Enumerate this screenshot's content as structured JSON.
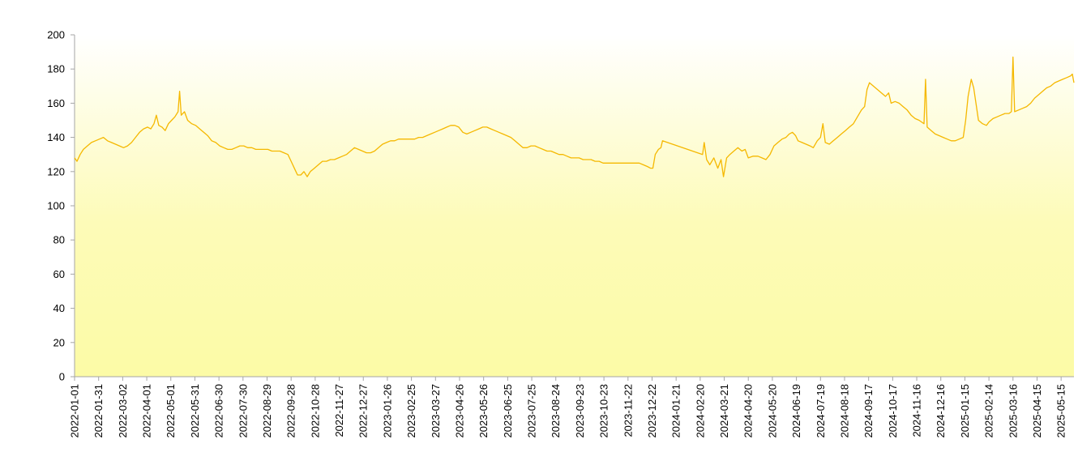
{
  "chart_data": {
    "type": "line",
    "title": "",
    "xlabel": "",
    "ylabel": "",
    "ylim": [
      0,
      200
    ],
    "y_ticks": [
      0,
      20,
      40,
      60,
      80,
      100,
      120,
      140,
      160,
      180,
      200
    ],
    "x_range": [
      "2022-01-01",
      "2025-05-31"
    ],
    "x_tick_labels": [
      "2022-01-01",
      "2022-01-31",
      "2022-03-02",
      "2022-04-01",
      "2022-05-01",
      "2022-05-31",
      "2022-06-30",
      "2022-07-30",
      "2022-08-29",
      "2022-09-28",
      "2022-10-28",
      "2022-11-27",
      "2022-12-27",
      "2023-01-26",
      "2023-02-25",
      "2023-03-27",
      "2023-04-26",
      "2023-05-26",
      "2023-06-25",
      "2023-07-25",
      "2023-08-24",
      "2023-09-23",
      "2023-10-23",
      "2023-11-22",
      "2023-12-22",
      "2024-01-21",
      "2024-02-20",
      "2024-03-21",
      "2024-04-20",
      "2024-05-20",
      "2024-06-19",
      "2024-07-19",
      "2024-08-18",
      "2024-09-17",
      "2024-10-17",
      "2024-11-16",
      "2024-12-16",
      "2025-01-15",
      "2025-02-14",
      "2025-03-16",
      "2025-04-15",
      "2025-05-15"
    ],
    "grid": false,
    "legend": "none",
    "background": {
      "top": "#ffffff",
      "mid": "#fdfbb8",
      "bottom": "#fcfba6"
    },
    "series": [
      {
        "color": "#f5b800",
        "points": [
          [
            "2022-01-01",
            128
          ],
          [
            "2022-01-04",
            126
          ],
          [
            "2022-01-08",
            130
          ],
          [
            "2022-01-12",
            133
          ],
          [
            "2022-01-17",
            135
          ],
          [
            "2022-01-22",
            137
          ],
          [
            "2022-01-27",
            138
          ],
          [
            "2022-02-01",
            139
          ],
          [
            "2022-02-06",
            140
          ],
          [
            "2022-02-11",
            138
          ],
          [
            "2022-02-16",
            137
          ],
          [
            "2022-02-21",
            136
          ],
          [
            "2022-02-26",
            135
          ],
          [
            "2022-03-03",
            134
          ],
          [
            "2022-03-08",
            135
          ],
          [
            "2022-03-13",
            137
          ],
          [
            "2022-03-18",
            140
          ],
          [
            "2022-03-23",
            143
          ],
          [
            "2022-03-28",
            145
          ],
          [
            "2022-04-02",
            146
          ],
          [
            "2022-04-06",
            145
          ],
          [
            "2022-04-10",
            148
          ],
          [
            "2022-04-13",
            153
          ],
          [
            "2022-04-16",
            147
          ],
          [
            "2022-04-20",
            146
          ],
          [
            "2022-04-24",
            144
          ],
          [
            "2022-04-28",
            148
          ],
          [
            "2022-05-02",
            150
          ],
          [
            "2022-05-06",
            152
          ],
          [
            "2022-05-10",
            155
          ],
          [
            "2022-05-12",
            167
          ],
          [
            "2022-05-14",
            153
          ],
          [
            "2022-05-18",
            155
          ],
          [
            "2022-05-22",
            150
          ],
          [
            "2022-05-27",
            148
          ],
          [
            "2022-06-01",
            147
          ],
          [
            "2022-06-06",
            145
          ],
          [
            "2022-06-11",
            143
          ],
          [
            "2022-06-16",
            141
          ],
          [
            "2022-06-21",
            138
          ],
          [
            "2022-06-26",
            137
          ],
          [
            "2022-07-01",
            135
          ],
          [
            "2022-07-06",
            134
          ],
          [
            "2022-07-11",
            133
          ],
          [
            "2022-07-16",
            133
          ],
          [
            "2022-07-21",
            134
          ],
          [
            "2022-07-26",
            135
          ],
          [
            "2022-07-31",
            135
          ],
          [
            "2022-08-05",
            134
          ],
          [
            "2022-08-10",
            134
          ],
          [
            "2022-08-15",
            133
          ],
          [
            "2022-08-20",
            133
          ],
          [
            "2022-08-25",
            133
          ],
          [
            "2022-08-30",
            133
          ],
          [
            "2022-09-04",
            132
          ],
          [
            "2022-09-09",
            132
          ],
          [
            "2022-09-14",
            132
          ],
          [
            "2022-09-19",
            131
          ],
          [
            "2022-09-24",
            130
          ],
          [
            "2022-09-28",
            126
          ],
          [
            "2022-10-03",
            121
          ],
          [
            "2022-10-06",
            118
          ],
          [
            "2022-10-10",
            118
          ],
          [
            "2022-10-14",
            120
          ],
          [
            "2022-10-18",
            117
          ],
          [
            "2022-10-22",
            120
          ],
          [
            "2022-10-27",
            122
          ],
          [
            "2022-11-01",
            124
          ],
          [
            "2022-11-06",
            126
          ],
          [
            "2022-11-11",
            126
          ],
          [
            "2022-11-16",
            127
          ],
          [
            "2022-11-21",
            127
          ],
          [
            "2022-11-26",
            128
          ],
          [
            "2022-12-01",
            129
          ],
          [
            "2022-12-06",
            130
          ],
          [
            "2022-12-11",
            132
          ],
          [
            "2022-12-16",
            134
          ],
          [
            "2022-12-21",
            133
          ],
          [
            "2022-12-26",
            132
          ],
          [
            "2022-12-31",
            131
          ],
          [
            "2023-01-05",
            131
          ],
          [
            "2023-01-10",
            132
          ],
          [
            "2023-01-15",
            134
          ],
          [
            "2023-01-20",
            136
          ],
          [
            "2023-01-25",
            137
          ],
          [
            "2023-01-30",
            138
          ],
          [
            "2023-02-04",
            138
          ],
          [
            "2023-02-09",
            139
          ],
          [
            "2023-02-14",
            139
          ],
          [
            "2023-02-19",
            139
          ],
          [
            "2023-02-24",
            139
          ],
          [
            "2023-03-01",
            139
          ],
          [
            "2023-03-06",
            140
          ],
          [
            "2023-03-11",
            140
          ],
          [
            "2023-03-16",
            141
          ],
          [
            "2023-03-21",
            142
          ],
          [
            "2023-03-26",
            143
          ],
          [
            "2023-03-31",
            144
          ],
          [
            "2023-04-05",
            145
          ],
          [
            "2023-04-10",
            146
          ],
          [
            "2023-04-15",
            147
          ],
          [
            "2023-04-20",
            147
          ],
          [
            "2023-04-25",
            146
          ],
          [
            "2023-04-30",
            143
          ],
          [
            "2023-05-05",
            142
          ],
          [
            "2023-05-10",
            143
          ],
          [
            "2023-05-15",
            144
          ],
          [
            "2023-05-20",
            145
          ],
          [
            "2023-05-25",
            146
          ],
          [
            "2023-05-30",
            146
          ],
          [
            "2023-06-04",
            145
          ],
          [
            "2023-06-09",
            144
          ],
          [
            "2023-06-14",
            143
          ],
          [
            "2023-06-19",
            142
          ],
          [
            "2023-06-24",
            141
          ],
          [
            "2023-06-29",
            140
          ],
          [
            "2023-07-04",
            138
          ],
          [
            "2023-07-09",
            136
          ],
          [
            "2023-07-14",
            134
          ],
          [
            "2023-07-19",
            134
          ],
          [
            "2023-07-24",
            135
          ],
          [
            "2023-07-29",
            135
          ],
          [
            "2023-08-03",
            134
          ],
          [
            "2023-08-08",
            133
          ],
          [
            "2023-08-13",
            132
          ],
          [
            "2023-08-18",
            132
          ],
          [
            "2023-08-23",
            131
          ],
          [
            "2023-08-28",
            130
          ],
          [
            "2023-09-02",
            130
          ],
          [
            "2023-09-07",
            129
          ],
          [
            "2023-09-12",
            128
          ],
          [
            "2023-09-17",
            128
          ],
          [
            "2023-09-22",
            128
          ],
          [
            "2023-09-27",
            127
          ],
          [
            "2023-10-02",
            127
          ],
          [
            "2023-10-07",
            127
          ],
          [
            "2023-10-12",
            126
          ],
          [
            "2023-10-17",
            126
          ],
          [
            "2023-10-22",
            125
          ],
          [
            "2023-10-27",
            125
          ],
          [
            "2023-11-01",
            125
          ],
          [
            "2023-11-06",
            125
          ],
          [
            "2023-11-11",
            125
          ],
          [
            "2023-11-16",
            125
          ],
          [
            "2023-11-21",
            125
          ],
          [
            "2023-11-26",
            125
          ],
          [
            "2023-12-01",
            125
          ],
          [
            "2023-12-06",
            125
          ],
          [
            "2023-12-11",
            124
          ],
          [
            "2023-12-16",
            123
          ],
          [
            "2023-12-20",
            122
          ],
          [
            "2023-12-23",
            122
          ],
          [
            "2023-12-26",
            130
          ],
          [
            "2023-12-30",
            133
          ],
          [
            "2024-01-02",
            134
          ],
          [
            "2024-01-04",
            138
          ],
          [
            "2024-02-23",
            130
          ],
          [
            "2024-02-25",
            137
          ],
          [
            "2024-02-28",
            127
          ],
          [
            "2024-03-03",
            124
          ],
          [
            "2024-03-08",
            128
          ],
          [
            "2024-03-13",
            122
          ],
          [
            "2024-03-17",
            127
          ],
          [
            "2024-03-20",
            117
          ],
          [
            "2024-03-24",
            128
          ],
          [
            "2024-03-28",
            130
          ],
          [
            "2024-04-02",
            132
          ],
          [
            "2024-04-07",
            134
          ],
          [
            "2024-04-12",
            132
          ],
          [
            "2024-04-16",
            133
          ],
          [
            "2024-04-20",
            128
          ],
          [
            "2024-04-26",
            129
          ],
          [
            "2024-05-02",
            129
          ],
          [
            "2024-05-07",
            128
          ],
          [
            "2024-05-12",
            127
          ],
          [
            "2024-05-17",
            130
          ],
          [
            "2024-05-22",
            135
          ],
          [
            "2024-05-27",
            137
          ],
          [
            "2024-06-01",
            139
          ],
          [
            "2024-06-06",
            140
          ],
          [
            "2024-06-10",
            142
          ],
          [
            "2024-06-14",
            143
          ],
          [
            "2024-06-18",
            141
          ],
          [
            "2024-06-21",
            138
          ],
          [
            "2024-06-26",
            137
          ],
          [
            "2024-07-01",
            136
          ],
          [
            "2024-07-06",
            135
          ],
          [
            "2024-07-10",
            134
          ],
          [
            "2024-07-15",
            138
          ],
          [
            "2024-07-19",
            140
          ],
          [
            "2024-07-22",
            148
          ],
          [
            "2024-07-25",
            137
          ],
          [
            "2024-07-30",
            136
          ],
          [
            "2024-08-04",
            138
          ],
          [
            "2024-08-09",
            140
          ],
          [
            "2024-08-14",
            142
          ],
          [
            "2024-08-19",
            144
          ],
          [
            "2024-08-24",
            146
          ],
          [
            "2024-08-29",
            148
          ],
          [
            "2024-09-03",
            152
          ],
          [
            "2024-09-08",
            156
          ],
          [
            "2024-09-12",
            158
          ],
          [
            "2024-09-15",
            168
          ],
          [
            "2024-09-18",
            172
          ],
          [
            "2024-10-08",
            164
          ],
          [
            "2024-10-12",
            166
          ],
          [
            "2024-10-15",
            160
          ],
          [
            "2024-10-20",
            161
          ],
          [
            "2024-10-25",
            160
          ],
          [
            "2024-10-30",
            158
          ],
          [
            "2024-11-04",
            156
          ],
          [
            "2024-11-09",
            153
          ],
          [
            "2024-11-14",
            151
          ],
          [
            "2024-11-19",
            150
          ],
          [
            "2024-11-22",
            149
          ],
          [
            "2024-11-25",
            148
          ],
          [
            "2024-11-27",
            174
          ],
          [
            "2024-11-29",
            146
          ],
          [
            "2024-12-04",
            144
          ],
          [
            "2024-12-09",
            142
          ],
          [
            "2024-12-14",
            141
          ],
          [
            "2024-12-19",
            140
          ],
          [
            "2024-12-24",
            139
          ],
          [
            "2024-12-29",
            138
          ],
          [
            "2025-01-03",
            138
          ],
          [
            "2025-01-08",
            139
          ],
          [
            "2025-01-13",
            140
          ],
          [
            "2025-01-16",
            150
          ],
          [
            "2025-01-19",
            164
          ],
          [
            "2025-01-23",
            174
          ],
          [
            "2025-01-26",
            169
          ],
          [
            "2025-02-01",
            150
          ],
          [
            "2025-02-06",
            148
          ],
          [
            "2025-02-11",
            147
          ],
          [
            "2025-02-14",
            149
          ],
          [
            "2025-02-19",
            151
          ],
          [
            "2025-02-24",
            152
          ],
          [
            "2025-03-01",
            153
          ],
          [
            "2025-03-06",
            154
          ],
          [
            "2025-03-11",
            154
          ],
          [
            "2025-03-14",
            155
          ],
          [
            "2025-03-16",
            187
          ],
          [
            "2025-03-18",
            155
          ],
          [
            "2025-03-23",
            156
          ],
          [
            "2025-03-28",
            157
          ],
          [
            "2025-04-02",
            158
          ],
          [
            "2025-04-07",
            160
          ],
          [
            "2025-04-12",
            163
          ],
          [
            "2025-04-17",
            165
          ],
          [
            "2025-04-22",
            167
          ],
          [
            "2025-04-27",
            169
          ],
          [
            "2025-05-02",
            170
          ],
          [
            "2025-05-07",
            172
          ],
          [
            "2025-05-12",
            173
          ],
          [
            "2025-05-17",
            174
          ],
          [
            "2025-05-22",
            175
          ],
          [
            "2025-05-27",
            176
          ],
          [
            "2025-05-29",
            177
          ],
          [
            "2025-05-31",
            172
          ]
        ]
      }
    ]
  }
}
